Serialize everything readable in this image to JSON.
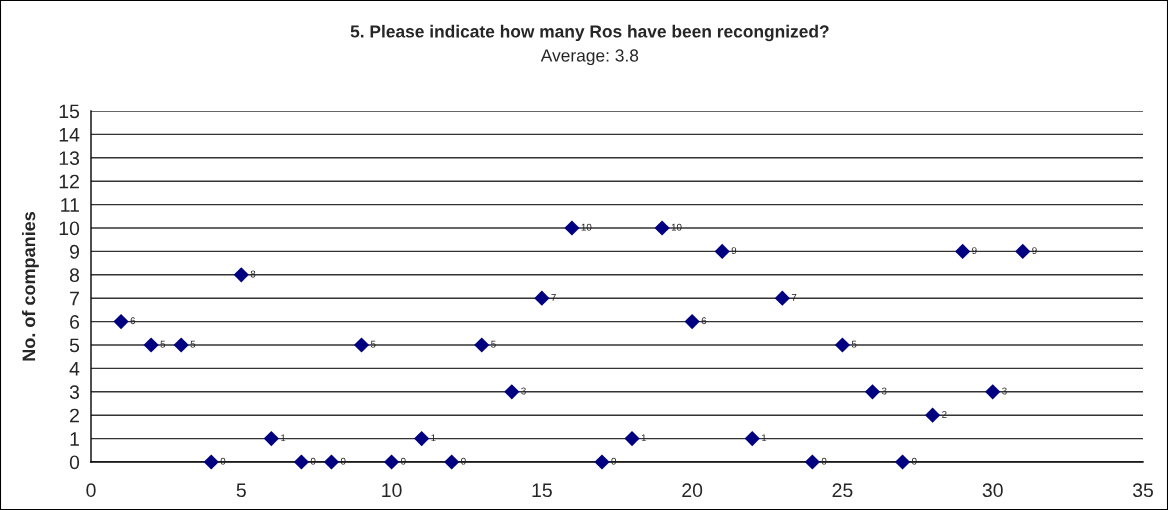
{
  "chart_data": {
    "type": "scatter",
    "title": "5. Please indicate how many Ros have been recongnized?",
    "subtitle": "Average: 3.8",
    "ylabel": "No. of companies",
    "x": [
      1,
      2,
      3,
      4,
      5,
      6,
      7,
      8,
      9,
      10,
      11,
      12,
      13,
      14,
      15,
      16,
      17,
      18,
      19,
      20,
      21,
      22,
      23,
      24,
      25,
      26,
      27,
      28,
      29,
      30,
      31
    ],
    "values": [
      6,
      5,
      5,
      0,
      8,
      1,
      0,
      0,
      5,
      0,
      1,
      0,
      5,
      3,
      7,
      10,
      0,
      1,
      10,
      6,
      9,
      1,
      7,
      0,
      5,
      3,
      0,
      2,
      9,
      3,
      9
    ],
    "color": "#000080",
    "marker": "diamond",
    "xlim": [
      0,
      35
    ],
    "xticks": [
      0,
      5,
      10,
      15,
      20,
      25,
      30,
      35
    ],
    "ylim": [
      0,
      15
    ],
    "yticks": [
      0,
      1,
      2,
      3,
      4,
      5,
      6,
      7,
      8,
      9,
      10,
      11,
      12,
      13,
      14,
      15
    ],
    "grid": "y",
    "data_labels": true
  }
}
